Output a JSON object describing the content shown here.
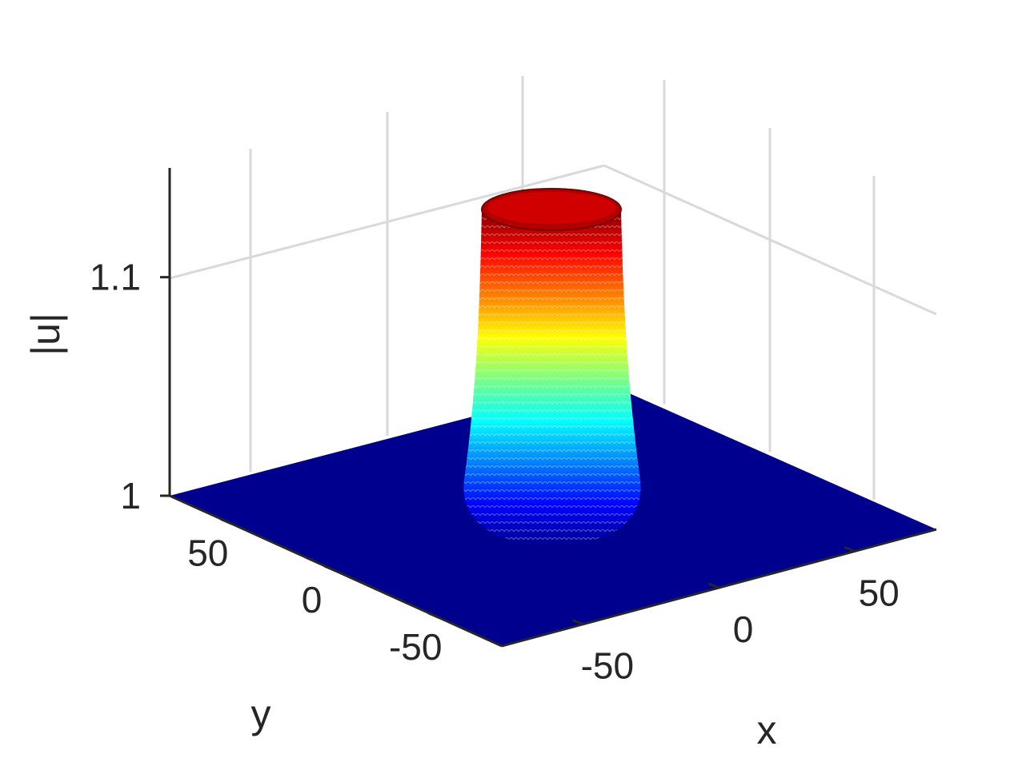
{
  "chart_data": {
    "type": "surface",
    "title": "",
    "xlabel": "x",
    "ylabel": "y",
    "zlabel": "|u|",
    "xlim": [
      -80,
      80
    ],
    "ylim": [
      -80,
      80
    ],
    "zlim": [
      1.0,
      1.15
    ],
    "x_ticks": [
      -50,
      0,
      50
    ],
    "x_tick_labels": [
      "-50",
      "0",
      "50"
    ],
    "y_ticks": [
      -50,
      0,
      50
    ],
    "y_tick_labels": [
      "-50",
      "0",
      "50"
    ],
    "z_ticks": [
      1.0,
      1.1
    ],
    "z_tick_labels": [
      "1",
      "1.1"
    ],
    "grid": true,
    "colormap": "jet",
    "surface": {
      "description_values": {
        "background_level": 1.0,
        "peak_level": 1.15,
        "peak_center_x": 0,
        "peak_center_y": 0,
        "plateau_radius": 22,
        "edge_width": 4
      }
    }
  }
}
